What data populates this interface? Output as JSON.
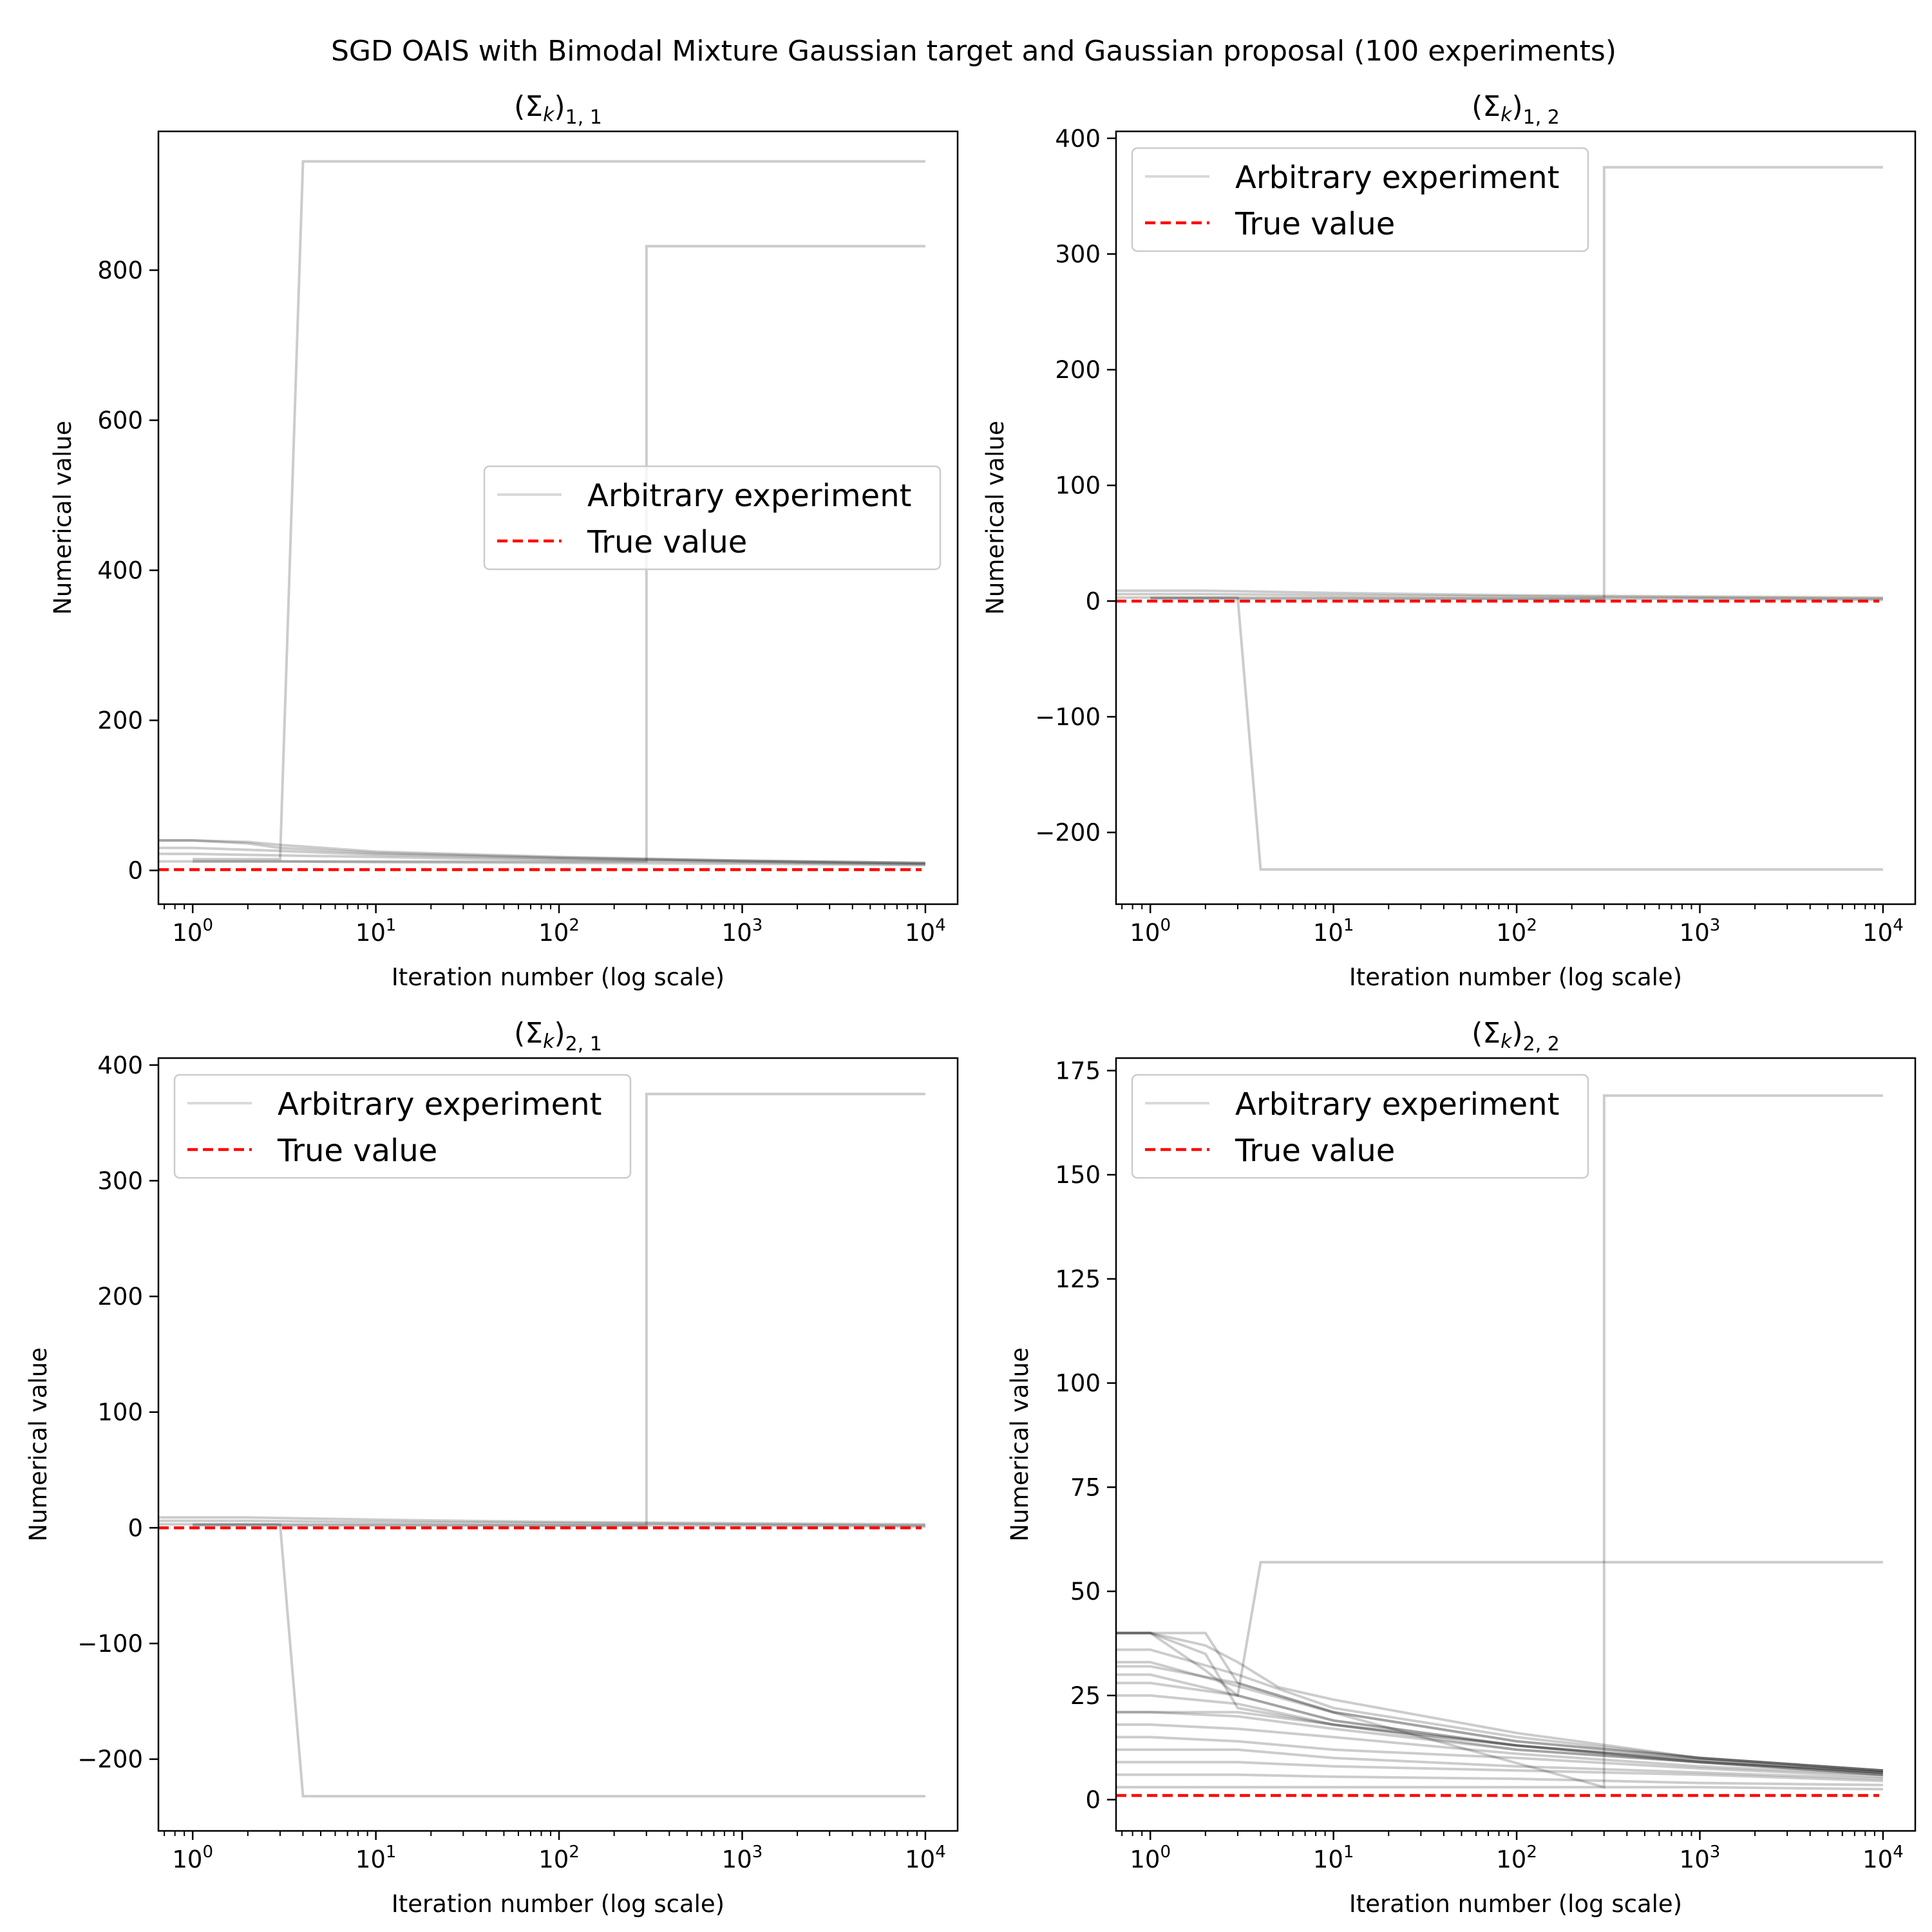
{
  "suptitle": "SGD OAIS with Bimodal Mixture Gaussian target and Gaussian proposal (100 experiments)",
  "chart_data": [
    {
      "type": "line",
      "title": "(Σ_k)_{1,1}",
      "title_main": "(Σ",
      "title_k": "k",
      "title_close": ")",
      "title_sub": "1, 1",
      "xlabel": "Iteration number (log scale)",
      "ylabel": "Numerical value",
      "x_scale": "log",
      "xlim": [
        0.65,
        15000
      ],
      "ylim": [
        -45,
        985
      ],
      "xticks": [
        {
          "base": "10",
          "exp": "0",
          "value": 1
        },
        {
          "base": "10",
          "exp": "1",
          "value": 10
        },
        {
          "base": "10",
          "exp": "2",
          "value": 100
        },
        {
          "base": "10",
          "exp": "3",
          "value": 1000
        },
        {
          "base": "10",
          "exp": "4",
          "value": 10000
        }
      ],
      "yticks": [
        {
          "label": "0",
          "value": 0
        },
        {
          "label": "200",
          "value": 200
        },
        {
          "label": "400",
          "value": 400
        },
        {
          "label": "600",
          "value": 600
        },
        {
          "label": "800",
          "value": 800
        }
      ],
      "true_value": 1,
      "legend": {
        "placement": "center-right",
        "entries": [
          "Arbitrary experiment",
          "True value"
        ]
      },
      "series": [
        {
          "x": [
            1,
            3,
            4,
            10000
          ],
          "y": [
            15,
            15,
            945,
            945
          ]
        },
        {
          "x": [
            1,
            300,
            300,
            10000
          ],
          "y": [
            12,
            12,
            832,
            832
          ]
        },
        {
          "x": [
            0.65,
            1,
            2,
            3,
            10,
            100,
            1000,
            10000
          ],
          "y": [
            40,
            40,
            36,
            30,
            23,
            17,
            13,
            10
          ]
        },
        {
          "x": [
            0.65,
            1,
            3,
            10,
            100,
            1000,
            10000
          ],
          "y": [
            30,
            30,
            26,
            21,
            16,
            12,
            9
          ]
        },
        {
          "x": [
            0.65,
            1,
            3,
            10,
            100,
            1000,
            10000
          ],
          "y": [
            22,
            22,
            20,
            18,
            14,
            11,
            8
          ]
        },
        {
          "x": [
            0.65,
            1,
            3,
            10,
            100,
            1000,
            10000
          ],
          "y": [
            12,
            12,
            12,
            11,
            10,
            9,
            7
          ]
        },
        {
          "x": [
            0.65,
            1,
            2,
            3,
            10,
            100,
            1000,
            10000
          ],
          "y": [
            40,
            40,
            38,
            34,
            25,
            18,
            13,
            10
          ]
        }
      ]
    },
    {
      "type": "line",
      "title": "(Σ_k)_{1,2}",
      "title_main": "(Σ",
      "title_k": "k",
      "title_close": ")",
      "title_sub": "1, 2",
      "xlabel": "Iteration number (log scale)",
      "ylabel": "Numerical value",
      "x_scale": "log",
      "xlim": [
        0.65,
        15000
      ],
      "ylim": [
        -262,
        406
      ],
      "xticks": [
        {
          "base": "10",
          "exp": "0",
          "value": 1
        },
        {
          "base": "10",
          "exp": "1",
          "value": 10
        },
        {
          "base": "10",
          "exp": "2",
          "value": 100
        },
        {
          "base": "10",
          "exp": "3",
          "value": 1000
        },
        {
          "base": "10",
          "exp": "4",
          "value": 10000
        }
      ],
      "yticks": [
        {
          "label": "−200",
          "value": -200
        },
        {
          "label": "−100",
          "value": -100
        },
        {
          "label": "0",
          "value": 0
        },
        {
          "label": "100",
          "value": 100
        },
        {
          "label": "200",
          "value": 200
        },
        {
          "label": "300",
          "value": 300
        },
        {
          "label": "400",
          "value": 400
        }
      ],
      "true_value": 0,
      "legend": {
        "placement": "upper-left",
        "entries": [
          "Arbitrary experiment",
          "True value"
        ]
      },
      "series": [
        {
          "x": [
            1,
            3,
            4,
            10000
          ],
          "y": [
            3,
            3,
            -232,
            -232
          ]
        },
        {
          "x": [
            1,
            300,
            300,
            10000
          ],
          "y": [
            2,
            2,
            375,
            375
          ]
        },
        {
          "x": [
            0.65,
            1,
            2,
            10,
            100,
            1000,
            10000
          ],
          "y": [
            9,
            9,
            9,
            7,
            5,
            4,
            3
          ]
        },
        {
          "x": [
            0.65,
            1,
            2,
            10,
            100,
            1000,
            10000
          ],
          "y": [
            6,
            6,
            6,
            5,
            4,
            3,
            2
          ]
        },
        {
          "x": [
            0.65,
            1,
            2,
            10,
            100,
            1000,
            10000
          ],
          "y": [
            3,
            3,
            3,
            3,
            2,
            2,
            1
          ]
        }
      ]
    },
    {
      "type": "line",
      "title": "(Σ_k)_{2,1}",
      "title_main": "(Σ",
      "title_k": "k",
      "title_close": ")",
      "title_sub": "2, 1",
      "xlabel": "Iteration number (log scale)",
      "ylabel": "Numerical value",
      "x_scale": "log",
      "xlim": [
        0.65,
        15000
      ],
      "ylim": [
        -262,
        406
      ],
      "xticks": [
        {
          "base": "10",
          "exp": "0",
          "value": 1
        },
        {
          "base": "10",
          "exp": "1",
          "value": 10
        },
        {
          "base": "10",
          "exp": "2",
          "value": 100
        },
        {
          "base": "10",
          "exp": "3",
          "value": 1000
        },
        {
          "base": "10",
          "exp": "4",
          "value": 10000
        }
      ],
      "yticks": [
        {
          "label": "−200",
          "value": -200
        },
        {
          "label": "−100",
          "value": -100
        },
        {
          "label": "0",
          "value": 0
        },
        {
          "label": "100",
          "value": 100
        },
        {
          "label": "200",
          "value": 200
        },
        {
          "label": "300",
          "value": 300
        },
        {
          "label": "400",
          "value": 400
        }
      ],
      "true_value": 0,
      "legend": {
        "placement": "upper-left",
        "entries": [
          "Arbitrary experiment",
          "True value"
        ]
      },
      "series": [
        {
          "x": [
            1,
            3,
            4,
            10000
          ],
          "y": [
            3,
            3,
            -232,
            -232
          ]
        },
        {
          "x": [
            1,
            300,
            300,
            10000
          ],
          "y": [
            2,
            2,
            375,
            375
          ]
        },
        {
          "x": [
            0.65,
            1,
            2,
            10,
            100,
            1000,
            10000
          ],
          "y": [
            9,
            9,
            9,
            7,
            5,
            4,
            3
          ]
        },
        {
          "x": [
            0.65,
            1,
            2,
            10,
            100,
            1000,
            10000
          ],
          "y": [
            6,
            6,
            6,
            5,
            4,
            3,
            2
          ]
        },
        {
          "x": [
            0.65,
            1,
            2,
            10,
            100,
            1000,
            10000
          ],
          "y": [
            3,
            3,
            3,
            3,
            2,
            2,
            1
          ]
        }
      ]
    },
    {
      "type": "line",
      "title": "(Σ_k)_{2,2}",
      "title_main": "(Σ",
      "title_k": "k",
      "title_close": ")",
      "title_sub": "2, 2",
      "xlabel": "Iteration number (log scale)",
      "ylabel": "Numerical value",
      "x_scale": "log",
      "xlim": [
        0.65,
        15000
      ],
      "ylim": [
        -7.5,
        178
      ],
      "xticks": [
        {
          "base": "10",
          "exp": "0",
          "value": 1
        },
        {
          "base": "10",
          "exp": "1",
          "value": 10
        },
        {
          "base": "10",
          "exp": "2",
          "value": 100
        },
        {
          "base": "10",
          "exp": "3",
          "value": 1000
        },
        {
          "base": "10",
          "exp": "4",
          "value": 10000
        }
      ],
      "yticks": [
        {
          "label": "0",
          "value": 0
        },
        {
          "label": "25",
          "value": 25
        },
        {
          "label": "50",
          "value": 50
        },
        {
          "label": "75",
          "value": 75
        },
        {
          "label": "100",
          "value": 100
        },
        {
          "label": "125",
          "value": 125
        },
        {
          "label": "150",
          "value": 150
        },
        {
          "label": "175",
          "value": 175
        }
      ],
      "true_value": 1,
      "legend": {
        "placement": "upper-left",
        "entries": [
          "Arbitrary experiment",
          "True value"
        ]
      },
      "series": [
        {
          "x": [
            0.65,
            1,
            300,
            300,
            10000
          ],
          "y": [
            33,
            33,
            3,
            169,
            169
          ]
        },
        {
          "x": [
            0.65,
            1,
            3,
            4,
            10000
          ],
          "y": [
            30,
            30,
            25,
            57,
            57
          ]
        },
        {
          "x": [
            0.65,
            1,
            2,
            3,
            10,
            100,
            1000,
            10000
          ],
          "y": [
            40,
            40,
            31,
            25,
            19,
            13,
            9,
            6.5
          ]
        },
        {
          "x": [
            0.65,
            1,
            2,
            3,
            10,
            100,
            1000,
            10000
          ],
          "y": [
            40,
            40,
            40,
            28,
            21,
            14,
            10,
            7
          ]
        },
        {
          "x": [
            0.65,
            1,
            2,
            3,
            10,
            100,
            1000,
            10000
          ],
          "y": [
            40,
            40,
            35,
            22,
            18,
            13,
            9.5,
            6.5
          ]
        },
        {
          "x": [
            0.65,
            1,
            3,
            10,
            100,
            1000,
            10000
          ],
          "y": [
            36,
            36,
            30,
            22,
            15,
            10,
            7
          ]
        },
        {
          "x": [
            0.65,
            1,
            3,
            10,
            100,
            1000,
            10000
          ],
          "y": [
            32,
            32,
            28,
            21,
            14,
            10,
            7
          ]
        },
        {
          "x": [
            0.65,
            1,
            3,
            10,
            100,
            1000,
            10000
          ],
          "y": [
            28,
            28,
            25,
            19,
            13,
            9,
            6.5
          ]
        },
        {
          "x": [
            0.65,
            1,
            3,
            10,
            100,
            1000,
            10000
          ],
          "y": [
            25,
            25,
            23,
            18,
            12,
            9,
            6
          ]
        },
        {
          "x": [
            0.65,
            1,
            3,
            10,
            100,
            1000,
            10000
          ],
          "y": [
            21,
            21,
            21,
            18,
            13,
            9.5,
            6.5
          ]
        },
        {
          "x": [
            0.65,
            1,
            3,
            10,
            100,
            1000,
            10000
          ],
          "y": [
            21,
            21,
            20,
            17,
            12,
            9,
            6
          ]
        },
        {
          "x": [
            0.65,
            1,
            3,
            10,
            100,
            1000,
            10000
          ],
          "y": [
            18,
            18,
            17,
            15,
            11,
            8,
            6
          ]
        },
        {
          "x": [
            0.65,
            1,
            3,
            10,
            100,
            1000,
            10000
          ],
          "y": [
            15,
            15,
            14,
            12,
            10,
            7.5,
            5.5
          ]
        },
        {
          "x": [
            0.65,
            1,
            3,
            10,
            100,
            1000,
            10000
          ],
          "y": [
            12,
            12,
            12,
            10,
            8,
            6.5,
            5
          ]
        },
        {
          "x": [
            0.65,
            1,
            3,
            10,
            100,
            1000,
            10000
          ],
          "y": [
            9,
            9,
            9,
            8,
            7,
            6,
            4.5
          ]
        },
        {
          "x": [
            0.65,
            1,
            3,
            10,
            100,
            1000,
            10000
          ],
          "y": [
            6,
            6,
            6,
            5.5,
            5,
            4,
            3.5
          ]
        },
        {
          "x": [
            0.65,
            1,
            10,
            100,
            1000,
            10000
          ],
          "y": [
            3,
            3,
            3,
            3,
            3,
            2.5
          ]
        },
        {
          "x": [
            0.65,
            1,
            2,
            3,
            5,
            10,
            100,
            1000,
            10000
          ],
          "y": [
            40,
            40,
            37,
            33,
            27,
            24,
            16,
            10,
            7
          ]
        }
      ]
    }
  ]
}
